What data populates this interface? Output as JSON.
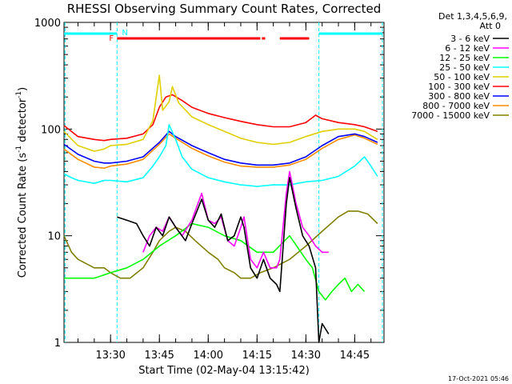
{
  "chart_data": {
    "type": "line",
    "title": "RHESSI Observing Summary Count Rates, Corrected",
    "xlabel": "Start Time (02-May-04 13:15:42)",
    "ylabel_main": "Corrected Count Rate (s",
    "ylabel_sup1": "-1",
    "ylabel_mid": " detector",
    "ylabel_sup2": "-1",
    "ylabel_end": ")",
    "y_scale": "log",
    "ylim": [
      1,
      1000
    ],
    "y_ticks": [
      "1",
      "10",
      "100",
      "1000"
    ],
    "x_range": [
      "13:15:42",
      "14:54:00"
    ],
    "x_ticks": [
      "13:30",
      "13:45",
      "14:00",
      "14:15",
      "14:30",
      "14:45"
    ],
    "legend_header": [
      "Det 1,3,4,5,6,9,",
      "Att 0"
    ],
    "legend_placement": "top-right, outside plot",
    "series": [
      {
        "name": "3 - 6 keV",
        "color": "#000000",
        "points": [
          [
            "13:32",
            15
          ],
          [
            "13:35",
            14
          ],
          [
            "13:38",
            13
          ],
          [
            "13:40",
            10
          ],
          [
            "13:42",
            8
          ],
          [
            "13:44",
            12
          ],
          [
            "13:46",
            10
          ],
          [
            "13:48",
            15
          ],
          [
            "13:50",
            12
          ],
          [
            "13:53",
            9
          ],
          [
            "13:55",
            13
          ],
          [
            "13:58",
            22
          ],
          [
            "14:00",
            14
          ],
          [
            "14:02",
            12
          ],
          [
            "14:04",
            16
          ],
          [
            "14:06",
            9
          ],
          [
            "14:08",
            10
          ],
          [
            "14:10",
            15
          ],
          [
            "14:11",
            12
          ],
          [
            "14:13",
            5
          ],
          [
            "14:15",
            4
          ],
          [
            "14:17",
            6
          ],
          [
            "14:19",
            4
          ],
          [
            "14:21",
            3.5
          ],
          [
            "14:22",
            3
          ],
          [
            "14:24",
            20
          ],
          [
            "14:25",
            35
          ],
          [
            "14:27",
            18
          ],
          [
            "14:29",
            10
          ],
          [
            "14:31",
            8
          ],
          [
            "14:33",
            5
          ],
          [
            "14:34",
            1
          ],
          [
            "14:35",
            1.5
          ],
          [
            "14:37",
            1.2
          ]
        ]
      },
      {
        "name": "6 - 12 keV",
        "color": "#ff00ff",
        "points": [
          [
            "13:40",
            7
          ],
          [
            "13:42",
            10
          ],
          [
            "13:44",
            12
          ],
          [
            "13:46",
            11
          ],
          [
            "13:48",
            15
          ],
          [
            "13:50",
            12
          ],
          [
            "13:52",
            10
          ],
          [
            "13:55",
            14
          ],
          [
            "13:58",
            25
          ],
          [
            "14:00",
            14
          ],
          [
            "14:02",
            13
          ],
          [
            "14:04",
            15
          ],
          [
            "14:06",
            9
          ],
          [
            "14:08",
            8
          ],
          [
            "14:10",
            12
          ],
          [
            "14:11",
            15
          ],
          [
            "14:13",
            6
          ],
          [
            "14:15",
            5
          ],
          [
            "14:17",
            7
          ],
          [
            "14:19",
            5
          ],
          [
            "14:21",
            5
          ],
          [
            "14:22",
            6
          ],
          [
            "14:24",
            25
          ],
          [
            "14:25",
            40
          ],
          [
            "14:27",
            20
          ],
          [
            "14:29",
            12
          ],
          [
            "14:31",
            10
          ],
          [
            "14:33",
            8
          ],
          [
            "14:35",
            7
          ],
          [
            "14:37",
            7
          ]
        ]
      },
      {
        "name": "12 - 25 keV",
        "color": "#00ff00",
        "points": [
          [
            "13:15:42",
            4
          ],
          [
            "13:20",
            4
          ],
          [
            "13:25",
            4
          ],
          [
            "13:30",
            4.5
          ],
          [
            "13:35",
            5
          ],
          [
            "13:40",
            6
          ],
          [
            "13:45",
            8
          ],
          [
            "13:50",
            10
          ],
          [
            "13:55",
            13
          ],
          [
            "14:00",
            12
          ],
          [
            "14:05",
            10
          ],
          [
            "14:10",
            9
          ],
          [
            "14:15",
            7
          ],
          [
            "14:20",
            7
          ],
          [
            "14:25",
            10
          ],
          [
            "14:30",
            6
          ],
          [
            "14:32",
            5
          ],
          [
            "14:34",
            3
          ],
          [
            "14:36",
            2.5
          ],
          [
            "14:38",
            3
          ],
          [
            "14:40",
            3.5
          ],
          [
            "14:42",
            4
          ],
          [
            "14:44",
            3
          ],
          [
            "14:46",
            3.5
          ],
          [
            "14:48",
            3
          ]
        ]
      },
      {
        "name": "25 - 50 keV",
        "color": "#00ffff",
        "points": [
          [
            "13:15:42",
            38
          ],
          [
            "13:18",
            35
          ],
          [
            "13:20",
            33
          ],
          [
            "13:25",
            31
          ],
          [
            "13:28",
            33
          ],
          [
            "13:30",
            33
          ],
          [
            "13:35",
            32
          ],
          [
            "13:40",
            35
          ],
          [
            "13:43",
            45
          ],
          [
            "13:45",
            55
          ],
          [
            "13:47",
            70
          ],
          [
            "13:48",
            110
          ],
          [
            "13:50",
            80
          ],
          [
            "13:52",
            55
          ],
          [
            "13:55",
            42
          ],
          [
            "14:00",
            35
          ],
          [
            "14:05",
            32
          ],
          [
            "14:10",
            30
          ],
          [
            "14:15",
            29
          ],
          [
            "14:20",
            30
          ],
          [
            "14:25",
            30
          ],
          [
            "14:30",
            32
          ],
          [
            "14:35",
            33
          ],
          [
            "14:40",
            36
          ],
          [
            "14:45",
            45
          ],
          [
            "14:48",
            55
          ],
          [
            "14:50",
            45
          ],
          [
            "14:52",
            36
          ]
        ]
      },
      {
        "name": "50 - 100 keV",
        "color": "#e0d000",
        "points": [
          [
            "13:15:42",
            95
          ],
          [
            "13:20",
            70
          ],
          [
            "13:25",
            62
          ],
          [
            "13:28",
            65
          ],
          [
            "13:30",
            70
          ],
          [
            "13:35",
            72
          ],
          [
            "13:40",
            80
          ],
          [
            "13:43",
            120
          ],
          [
            "13:45",
            320
          ],
          [
            "13:46",
            150
          ],
          [
            "13:48",
            180
          ],
          [
            "13:49",
            250
          ],
          [
            "13:51",
            175
          ],
          [
            "13:55",
            130
          ],
          [
            "14:00",
            110
          ],
          [
            "14:05",
            95
          ],
          [
            "14:10",
            82
          ],
          [
            "14:15",
            75
          ],
          [
            "14:20",
            72
          ],
          [
            "14:25",
            75
          ],
          [
            "14:30",
            85
          ],
          [
            "14:35",
            95
          ],
          [
            "14:40",
            100
          ],
          [
            "14:45",
            100
          ],
          [
            "14:48",
            95
          ],
          [
            "14:52",
            80
          ]
        ]
      },
      {
        "name": "100 - 300 keV",
        "color": "#ff0000",
        "points": [
          [
            "13:15:42",
            108
          ],
          [
            "13:20",
            85
          ],
          [
            "13:25",
            80
          ],
          [
            "13:28",
            78
          ],
          [
            "13:30",
            80
          ],
          [
            "13:35",
            82
          ],
          [
            "13:40",
            90
          ],
          [
            "13:43",
            110
          ],
          [
            "13:45",
            160
          ],
          [
            "13:47",
            200
          ],
          [
            "13:49",
            210
          ],
          [
            "13:52",
            185
          ],
          [
            "13:55",
            160
          ],
          [
            "14:00",
            140
          ],
          [
            "14:05",
            128
          ],
          [
            "14:10",
            118
          ],
          [
            "14:15",
            110
          ],
          [
            "14:20",
            105
          ],
          [
            "14:25",
            105
          ],
          [
            "14:30",
            115
          ],
          [
            "14:33",
            135
          ],
          [
            "14:35",
            125
          ],
          [
            "14:40",
            115
          ],
          [
            "14:45",
            110
          ],
          [
            "14:48",
            105
          ],
          [
            "14:52",
            95
          ]
        ]
      },
      {
        "name": "300 - 800 keV",
        "color": "#0000ff",
        "points": [
          [
            "13:15:42",
            72
          ],
          [
            "13:20",
            58
          ],
          [
            "13:25",
            50
          ],
          [
            "13:28",
            48
          ],
          [
            "13:30",
            48
          ],
          [
            "13:35",
            50
          ],
          [
            "13:40",
            55
          ],
          [
            "13:45",
            75
          ],
          [
            "13:48",
            95
          ],
          [
            "13:50",
            85
          ],
          [
            "13:55",
            70
          ],
          [
            "14:00",
            60
          ],
          [
            "14:05",
            52
          ],
          [
            "14:10",
            48
          ],
          [
            "14:15",
            46
          ],
          [
            "14:20",
            46
          ],
          [
            "14:25",
            48
          ],
          [
            "14:30",
            55
          ],
          [
            "14:35",
            70
          ],
          [
            "14:40",
            85
          ],
          [
            "14:45",
            90
          ],
          [
            "14:48",
            85
          ],
          [
            "14:52",
            75
          ]
        ]
      },
      {
        "name": "800 - 7000 keV",
        "color": "#ff8c00",
        "points": [
          [
            "13:15:42",
            65
          ],
          [
            "13:20",
            52
          ],
          [
            "13:25",
            44
          ],
          [
            "13:28",
            43
          ],
          [
            "13:30",
            45
          ],
          [
            "13:35",
            47
          ],
          [
            "13:40",
            52
          ],
          [
            "13:45",
            72
          ],
          [
            "13:48",
            90
          ],
          [
            "13:50",
            82
          ],
          [
            "13:55",
            66
          ],
          [
            "14:00",
            56
          ],
          [
            "14:05",
            49
          ],
          [
            "14:10",
            45
          ],
          [
            "14:15",
            44
          ],
          [
            "14:20",
            44
          ],
          [
            "14:25",
            46
          ],
          [
            "14:30",
            52
          ],
          [
            "14:35",
            66
          ],
          [
            "14:40",
            80
          ],
          [
            "14:45",
            88
          ],
          [
            "14:48",
            82
          ],
          [
            "14:52",
            72
          ]
        ]
      },
      {
        "name": "7000 - 15000 keV",
        "color": "#808000",
        "points": [
          [
            "13:15:42",
            10
          ],
          [
            "13:18",
            7
          ],
          [
            "13:20",
            6
          ],
          [
            "13:25",
            5
          ],
          [
            "13:28",
            5
          ],
          [
            "13:30",
            4.5
          ],
          [
            "13:33",
            4
          ],
          [
            "13:36",
            4
          ],
          [
            "13:40",
            5
          ],
          [
            "13:43",
            7
          ],
          [
            "13:45",
            9
          ],
          [
            "13:48",
            11
          ],
          [
            "13:50",
            12
          ],
          [
            "13:53",
            11
          ],
          [
            "13:56",
            9
          ],
          [
            "14:00",
            7
          ],
          [
            "14:03",
            6
          ],
          [
            "14:05",
            5
          ],
          [
            "14:08",
            4.5
          ],
          [
            "14:10",
            4
          ],
          [
            "14:13",
            4
          ],
          [
            "14:16",
            4.5
          ],
          [
            "14:20",
            5
          ],
          [
            "14:25",
            6
          ],
          [
            "14:30",
            8
          ],
          [
            "14:35",
            11
          ],
          [
            "14:40",
            15
          ],
          [
            "14:43",
            17
          ],
          [
            "14:46",
            17
          ],
          [
            "14:49",
            16
          ],
          [
            "14:52",
            13
          ]
        ]
      }
    ],
    "flags": {
      "saa_label": "N",
      "saa_color": "#00ffff",
      "saa_segments": [
        [
          "13:15:42",
          "13:32"
        ],
        [
          "14:34",
          "14:53:30"
        ]
      ],
      "flare_label": "F",
      "flare_color": "#ff0000",
      "flare_segments": [
        [
          "13:32",
          "14:16"
        ],
        [
          "14:16:30",
          "14:17:30"
        ],
        [
          "14:22",
          "14:31"
        ]
      ],
      "night_lines": [
        "13:16",
        "13:32",
        "14:34",
        "14:53:30"
      ]
    },
    "grid": false,
    "timestamp": "17-Oct-2021 05:46"
  }
}
